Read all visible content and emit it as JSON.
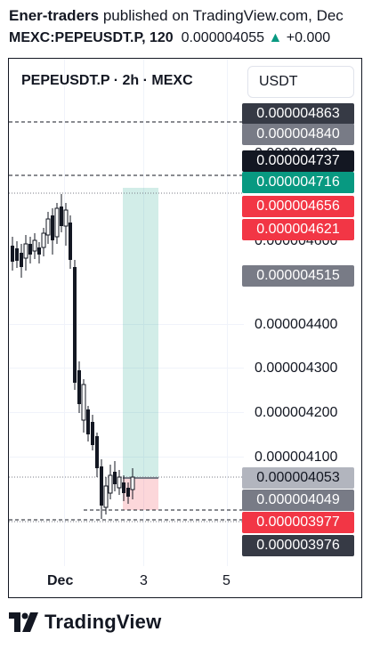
{
  "header": {
    "author": "Ener-traders",
    "published_text": "published on TradingView.com, Dec",
    "symbol_line": "MEXC:PEPEUSDT.P, 120",
    "price": "0.000004055",
    "change_arrow": "▲",
    "change": "+0.000"
  },
  "chart": {
    "title": "PEPEUSDT.P · 2h · MEXC",
    "currency_button": "USDT",
    "price_axis": [
      "0.000004400",
      "0.000004300",
      "0.000004200",
      "0.000004100"
    ],
    "partial_labels": [
      "0.000004800",
      "0.000004600"
    ],
    "tags": [
      {
        "text": "0.000004863",
        "color": "#363a45"
      },
      {
        "text": "0.000004840",
        "color": "#787b86"
      },
      {
        "text": "0.000004737",
        "color": "#131722"
      },
      {
        "text": "0.000004716",
        "color": "#089981"
      },
      {
        "text": "0.000004656",
        "color": "#f23645"
      },
      {
        "text": "0.000004621",
        "color": "#f23645"
      },
      {
        "text": "0.000004515",
        "color": "#787b86"
      },
      {
        "text": "0.000004053",
        "color": "#b2b5be"
      },
      {
        "text": "0.000004049",
        "color": "#787b86"
      },
      {
        "text": "0.000003977",
        "color": "#f23645"
      },
      {
        "text": "0.000003976",
        "color": "#363a45"
      }
    ],
    "time_axis": {
      "dec": "Dec",
      "d3": "3",
      "d5": "5"
    }
  },
  "footer": {
    "brand": "TradingView"
  }
}
